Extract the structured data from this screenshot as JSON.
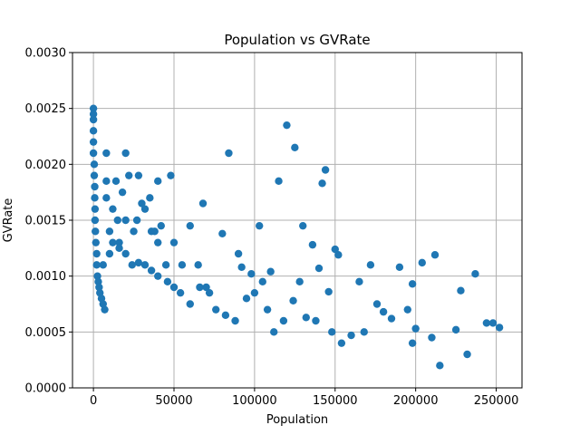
{
  "chart_data": {
    "type": "scatter",
    "title": "Population vs GVRate",
    "xlabel": "Population",
    "ylabel": "GVRate",
    "xlim": [
      -13000,
      266000
    ],
    "ylim": [
      0,
      0.003
    ],
    "x_ticks": [
      0,
      50000,
      100000,
      150000,
      200000,
      250000
    ],
    "x_tick_labels": [
      "0",
      "50000",
      "100000",
      "150000",
      "200000",
      "250000"
    ],
    "y_ticks": [
      0,
      0.0005,
      0.001,
      0.0015,
      0.002,
      0.0025,
      0.003
    ],
    "y_tick_labels": [
      "0.0000",
      "0.0005",
      "0.0010",
      "0.0015",
      "0.0020",
      "0.0025",
      "0.0030"
    ],
    "grid": true,
    "legend": "none",
    "marker_color": "#1f77b4",
    "points": [
      [
        0,
        0.0025
      ],
      [
        0,
        0.00245
      ],
      [
        0,
        0.0024
      ],
      [
        0,
        0.0023
      ],
      [
        0,
        0.0022
      ],
      [
        0,
        0.0021
      ],
      [
        500,
        0.002
      ],
      [
        500,
        0.0019
      ],
      [
        800,
        0.0018
      ],
      [
        800,
        0.0017
      ],
      [
        1000,
        0.0016
      ],
      [
        1000,
        0.0015
      ],
      [
        1200,
        0.0014
      ],
      [
        1500,
        0.0013
      ],
      [
        2000,
        0.0012
      ],
      [
        2000,
        0.0011
      ],
      [
        2500,
        0.001
      ],
      [
        3000,
        0.00095
      ],
      [
        3500,
        0.0009
      ],
      [
        4000,
        0.00085
      ],
      [
        5000,
        0.0008
      ],
      [
        6000,
        0.00075
      ],
      [
        7000,
        0.0007
      ],
      [
        8000,
        0.0021
      ],
      [
        8000,
        0.00185
      ],
      [
        8000,
        0.0017
      ],
      [
        10000,
        0.0014
      ],
      [
        12000,
        0.0016
      ],
      [
        14000,
        0.00185
      ],
      [
        15000,
        0.0015
      ],
      [
        16000,
        0.0013
      ],
      [
        18000,
        0.00175
      ],
      [
        20000,
        0.0021
      ],
      [
        20000,
        0.0015
      ],
      [
        22000,
        0.0019
      ],
      [
        25000,
        0.0014
      ],
      [
        27000,
        0.0015
      ],
      [
        28000,
        0.0019
      ],
      [
        30000,
        0.00165
      ],
      [
        32000,
        0.0016
      ],
      [
        35000,
        0.0017
      ],
      [
        36000,
        0.0014
      ],
      [
        38000,
        0.0014
      ],
      [
        40000,
        0.00185
      ],
      [
        40000,
        0.0013
      ],
      [
        42000,
        0.00145
      ],
      [
        45000,
        0.0011
      ],
      [
        48000,
        0.0019
      ],
      [
        50000,
        0.0013
      ],
      [
        55000,
        0.0011
      ],
      [
        60000,
        0.00145
      ],
      [
        65000,
        0.0011
      ],
      [
        68000,
        0.00165
      ],
      [
        70000,
        0.0009
      ],
      [
        80000,
        0.00138
      ],
      [
        84000,
        0.0021
      ],
      [
        90000,
        0.0012
      ],
      [
        92000,
        0.00108
      ],
      [
        98000,
        0.00102
      ],
      [
        103000,
        0.00145
      ],
      [
        105000,
        0.00095
      ],
      [
        110000,
        0.00104
      ],
      [
        115000,
        0.00185
      ],
      [
        120000,
        0.00235
      ],
      [
        125000,
        0.00215
      ],
      [
        128000,
        0.00095
      ],
      [
        130000,
        0.00145
      ],
      [
        136000,
        0.00128
      ],
      [
        140000,
        0.00107
      ],
      [
        142000,
        0.00183
      ],
      [
        144000,
        0.00195
      ],
      [
        146000,
        0.00086
      ],
      [
        150000,
        0.00124
      ],
      [
        152000,
        0.00119
      ],
      [
        165000,
        0.00095
      ],
      [
        172000,
        0.0011
      ],
      [
        180000,
        0.00068
      ],
      [
        185000,
        0.00062
      ],
      [
        190000,
        0.00108
      ],
      [
        195000,
        0.0007
      ],
      [
        198000,
        0.00093
      ],
      [
        200000,
        0.00053
      ],
      [
        204000,
        0.00112
      ],
      [
        212000,
        0.00119
      ],
      [
        228000,
        0.00087
      ],
      [
        237000,
        0.00102
      ],
      [
        244000,
        0.00058
      ],
      [
        248000,
        0.00058
      ],
      [
        252000,
        0.00054
      ],
      [
        225000,
        0.00052
      ],
      [
        232000,
        0.0003
      ],
      [
        210000,
        0.00045
      ],
      [
        215000,
        0.0002
      ],
      [
        198000,
        0.0004
      ],
      [
        176000,
        0.00075
      ],
      [
        168000,
        0.0005
      ],
      [
        160000,
        0.00047
      ],
      [
        154000,
        0.0004
      ],
      [
        148000,
        0.0005
      ],
      [
        138000,
        0.0006
      ],
      [
        132000,
        0.00063
      ],
      [
        124000,
        0.00078
      ],
      [
        118000,
        0.0006
      ],
      [
        112000,
        0.0005
      ],
      [
        108000,
        0.0007
      ],
      [
        100000,
        0.00085
      ],
      [
        95000,
        0.0008
      ],
      [
        88000,
        0.0006
      ],
      [
        82000,
        0.00065
      ],
      [
        76000,
        0.0007
      ],
      [
        72000,
        0.00085
      ],
      [
        66000,
        0.0009
      ],
      [
        60000,
        0.00075
      ],
      [
        54000,
        0.00085
      ],
      [
        50000,
        0.0009
      ],
      [
        46000,
        0.00095
      ],
      [
        40000,
        0.001
      ],
      [
        36000,
        0.00105
      ],
      [
        32000,
        0.0011
      ],
      [
        28000,
        0.00112
      ],
      [
        24000,
        0.0011
      ],
      [
        20000,
        0.0012
      ],
      [
        16000,
        0.00125
      ],
      [
        12000,
        0.0013
      ],
      [
        10000,
        0.0012
      ],
      [
        6000,
        0.0011
      ]
    ]
  }
}
